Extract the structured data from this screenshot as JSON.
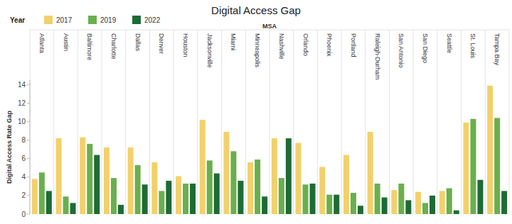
{
  "chart_data": {
    "type": "bar",
    "title": "Digital Access Gap",
    "x_label": "MSA",
    "y_label": "Digital Access Rate Gap",
    "legend_title": "Year",
    "categories": [
      "Atlanta",
      "Austin",
      "Baltimore",
      "Charlotte",
      "Dallas",
      "Denver",
      "Houston",
      "Jacksonville",
      "Miami",
      "Minneapolis",
      "Nashville",
      "Orlando",
      "Phoenix",
      "Portland",
      "Raleigh-Durham",
      "San Antonio",
      "San Diego",
      "Seattle",
      "St. Louis",
      "Tampa Bay"
    ],
    "series": [
      {
        "name": "2017",
        "color": "#f2d16b",
        "values": [
          3.8,
          8.2,
          8.3,
          7.2,
          7.2,
          5.6,
          4.1,
          10.2,
          8.9,
          5.6,
          8.2,
          7.7,
          5.1,
          6.4,
          8.9,
          2.6,
          2.4,
          2.5,
          9.9,
          13.9
        ]
      },
      {
        "name": "2019",
        "color": "#6aaf4e",
        "values": [
          4.5,
          1.9,
          7.6,
          3.9,
          5.3,
          2.5,
          3.3,
          5.8,
          6.8,
          5.9,
          3.9,
          3.2,
          2.1,
          2.3,
          3.3,
          3.3,
          1.2,
          2.8,
          10.3,
          10.4
        ]
      },
      {
        "name": "2022",
        "color": "#1e6b35",
        "values": [
          2.5,
          1.2,
          6.4,
          1.0,
          3.2,
          3.6,
          3.3,
          4.4,
          3.6,
          1.9,
          8.2,
          3.3,
          2.1,
          0.9,
          1.8,
          1.5,
          2.0,
          0.4,
          3.7,
          2.5
        ]
      }
    ],
    "ylim": [
      0,
      14.5
    ],
    "yticks": [
      0,
      2,
      4,
      6,
      8,
      10,
      12,
      14
    ],
    "grid": false,
    "legend": "top-left"
  }
}
